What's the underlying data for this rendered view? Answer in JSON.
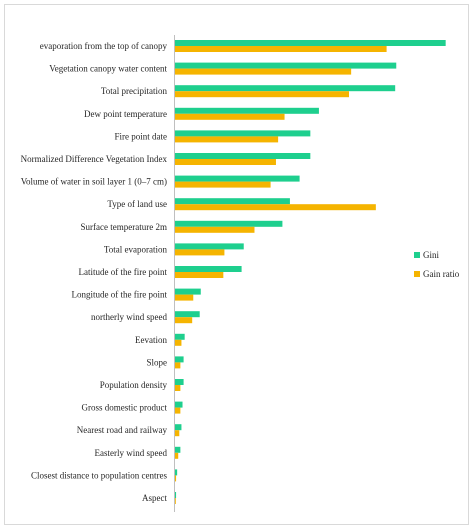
{
  "chart_data": {
    "type": "bar",
    "orientation": "horizontal",
    "categories": [
      "evaporation from the top of canopy",
      "Vegetation canopy water content",
      "Total precipitation",
      "Dew point temperature",
      "Fire point date",
      "Normalized Difference Vegetation Index",
      "Volume of water in soil layer 1 (0–7 cm)",
      "Type of land use",
      "Surface temperature 2m",
      "Total evaporation",
      "Latitude of the fire point",
      "Longitude of the fire point",
      "northerly wind speed",
      "Eevation",
      "Slope",
      "Population density",
      "Gross domestic product",
      "Nearest road and railway",
      "Easterly wind speed",
      "Closest distance to population centres",
      "Aspect"
    ],
    "series": [
      {
        "name": "Gini",
        "color": "#1ecf8e",
        "values": [
          0.252,
          0.206,
          0.205,
          0.134,
          0.126,
          0.126,
          0.116,
          0.107,
          0.1,
          0.064,
          0.062,
          0.024,
          0.023,
          0.009,
          0.008,
          0.008,
          0.007,
          0.006,
          0.005,
          0.002,
          0.001
        ]
      },
      {
        "name": "Gain ratio",
        "color": "#f5b400",
        "values": [
          0.197,
          0.164,
          0.162,
          0.102,
          0.096,
          0.094,
          0.089,
          0.187,
          0.074,
          0.046,
          0.045,
          0.017,
          0.016,
          0.006,
          0.005,
          0.005,
          0.005,
          0.004,
          0.003,
          0.001,
          0.0005
        ]
      }
    ],
    "xlim": [
      0,
      0.27
    ],
    "grid": false,
    "legend_position": "right"
  }
}
